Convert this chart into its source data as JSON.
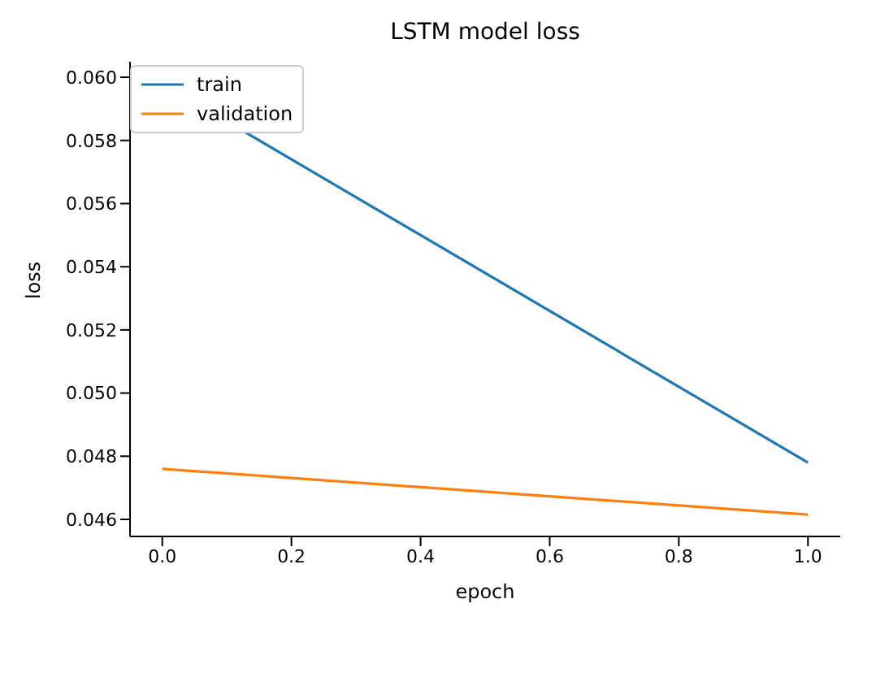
{
  "chart_data": {
    "type": "line",
    "title": "LSTM model loss",
    "xlabel": "epoch",
    "ylabel": "loss",
    "x": [
      0,
      1
    ],
    "series": [
      {
        "name": "train",
        "color": "#1f77b4",
        "values": [
          0.0598,
          0.0478
        ]
      },
      {
        "name": "validation",
        "color": "#ff7f0e",
        "values": [
          0.0476,
          0.04615
        ]
      }
    ],
    "xlim": [
      -0.05,
      1.05
    ],
    "xticks": [
      {
        "value": 0,
        "label": "0.0"
      },
      {
        "value": 0.2,
        "label": "0.2"
      },
      {
        "value": 0.4,
        "label": "0.4"
      },
      {
        "value": 0.6,
        "label": "0.6"
      },
      {
        "value": 0.8,
        "label": "0.8"
      },
      {
        "value": 1,
        "label": "1.0"
      }
    ],
    "ylim": [
      0.04546,
      0.06049
    ],
    "yticks": [
      {
        "value": 0.046,
        "label": "0.046"
      },
      {
        "value": 0.048,
        "label": "0.048"
      },
      {
        "value": 0.05,
        "label": "0.050"
      },
      {
        "value": 0.052,
        "label": "0.052"
      },
      {
        "value": 0.054,
        "label": "0.054"
      },
      {
        "value": 0.056,
        "label": "0.056"
      },
      {
        "value": 0.058,
        "label": "0.058"
      },
      {
        "value": 0.06,
        "label": "0.060"
      }
    ],
    "legend": "top left",
    "grid": false,
    "marker": "none",
    "line_style": "solid"
  }
}
